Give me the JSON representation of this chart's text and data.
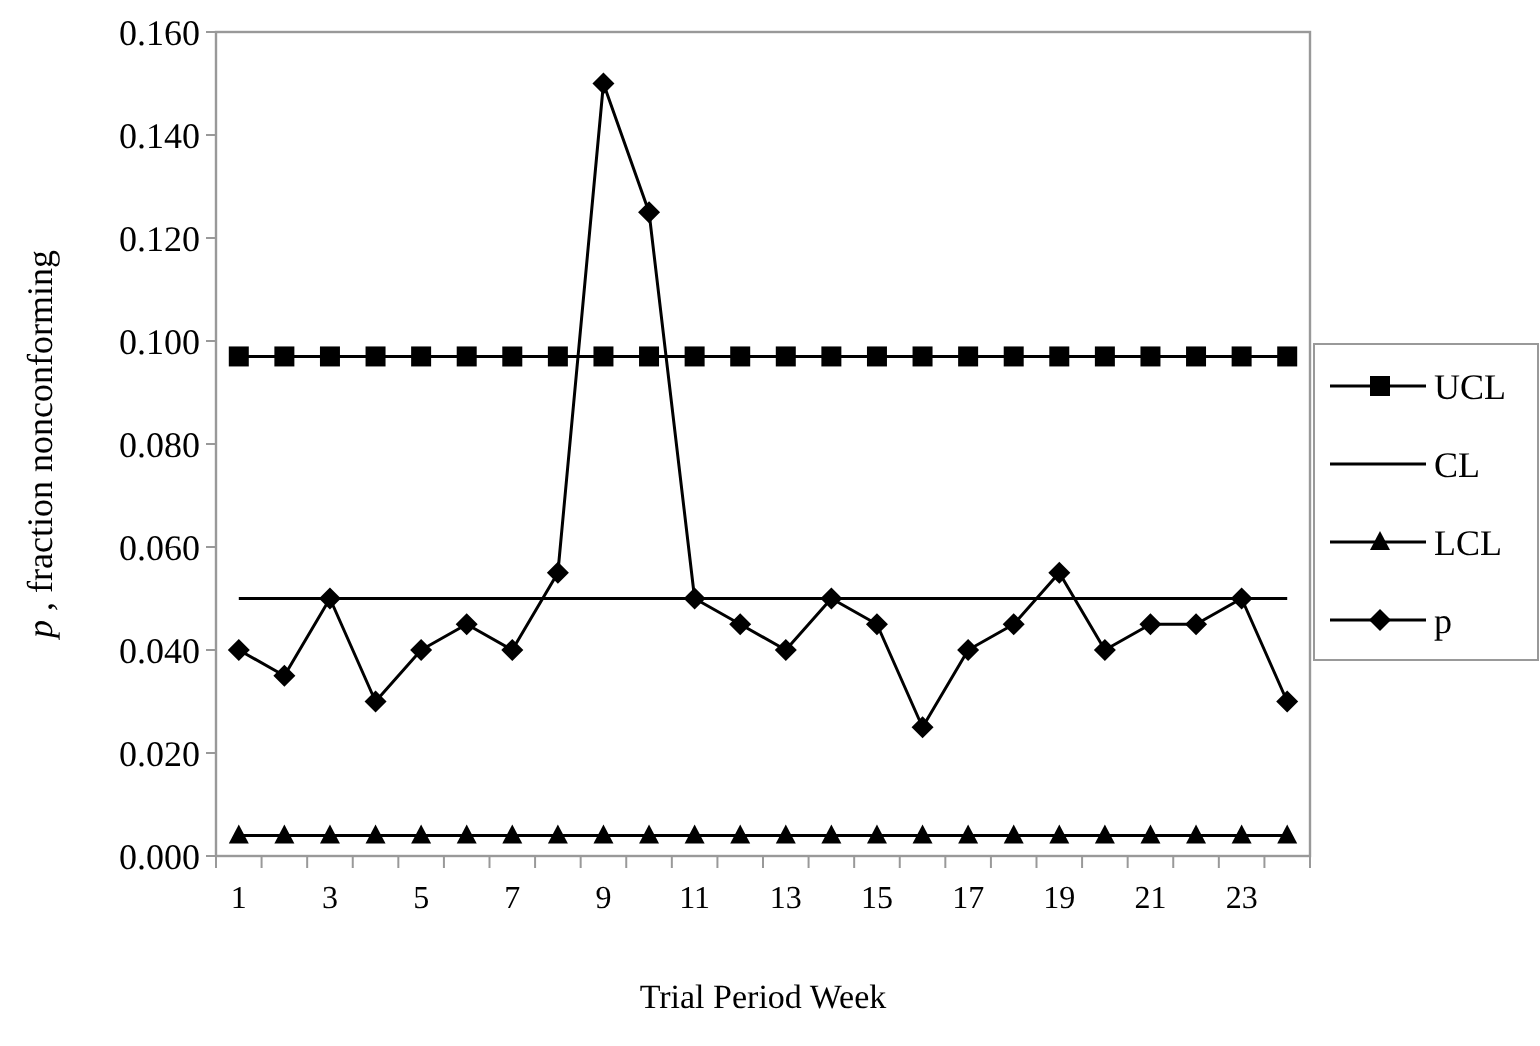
{
  "chart_data": {
    "type": "line",
    "xlabel": "Trial Period Week",
    "ylabel": "p , fraction nonconforming",
    "x": [
      1,
      2,
      3,
      4,
      5,
      6,
      7,
      8,
      9,
      10,
      11,
      12,
      13,
      14,
      15,
      16,
      17,
      18,
      19,
      20,
      21,
      22,
      23,
      24
    ],
    "xlim": [
      0.5,
      24.5
    ],
    "xticks": [
      1,
      3,
      5,
      7,
      9,
      11,
      13,
      15,
      17,
      19,
      21,
      23,
      {
        "value": 0.5,
        "label": null
      },
      {
        "value": 1.5,
        "label": null
      },
      {
        "value": 2.5,
        "label": null
      },
      {
        "value": 3.5,
        "label": null
      },
      {
        "value": 4.5,
        "label": null
      },
      {
        "value": 5.5,
        "label": null
      },
      {
        "value": 6.5,
        "label": null
      },
      {
        "value": 7.5,
        "label": null
      },
      {
        "value": 8.5,
        "label": null
      },
      {
        "value": 9.5,
        "label": null
      },
      {
        "value": 10.5,
        "label": null
      },
      {
        "value": 11.5,
        "label": null
      },
      {
        "value": 12.5,
        "label": null
      },
      {
        "value": 13.5,
        "label": null
      },
      {
        "value": 14.5,
        "label": null
      },
      {
        "value": 15.5,
        "label": null
      },
      {
        "value": 16.5,
        "label": null
      },
      {
        "value": 17.5,
        "label": null
      },
      {
        "value": 18.5,
        "label": null
      },
      {
        "value": 19.5,
        "label": null
      },
      {
        "value": 20.5,
        "label": null
      },
      {
        "value": 21.5,
        "label": null
      },
      {
        "value": 22.5,
        "label": null
      },
      {
        "value": 23.5,
        "label": null
      },
      {
        "value": 24.5,
        "label": null
      }
    ],
    "series": [
      {
        "name": "UCL",
        "color": "#000000",
        "marker": "square",
        "values": [
          0.097,
          0.097,
          0.097,
          0.097,
          0.097,
          0.097,
          0.097,
          0.097,
          0.097,
          0.097,
          0.097,
          0.097,
          0.097,
          0.097,
          0.097,
          0.097,
          0.097,
          0.097,
          0.097,
          0.097,
          0.097,
          0.097,
          0.097,
          0.097
        ]
      },
      {
        "name": "CL",
        "color": "#000000",
        "marker": "none",
        "values": [
          0.05,
          0.05,
          0.05,
          0.05,
          0.05,
          0.05,
          0.05,
          0.05,
          0.05,
          0.05,
          0.05,
          0.05,
          0.05,
          0.05,
          0.05,
          0.05,
          0.05,
          0.05,
          0.05,
          0.05,
          0.05,
          0.05,
          0.05,
          0.05
        ]
      },
      {
        "name": "LCL",
        "color": "#000000",
        "marker": "triangle",
        "values": [
          0.004,
          0.004,
          0.004,
          0.004,
          0.004,
          0.004,
          0.004,
          0.004,
          0.004,
          0.004,
          0.004,
          0.004,
          0.004,
          0.004,
          0.004,
          0.004,
          0.004,
          0.004,
          0.004,
          0.004,
          0.004,
          0.004,
          0.004,
          0.004
        ]
      },
      {
        "name": "p",
        "color": "#000000",
        "marker": "diamond",
        "values": [
          0.04,
          0.035,
          0.05,
          0.03,
          0.04,
          0.045,
          0.04,
          0.055,
          0.15,
          0.125,
          0.05,
          0.045,
          0.04,
          0.05,
          0.045,
          0.025,
          0.04,
          0.045,
          0.055,
          0.04,
          0.045,
          0.045,
          0.05,
          0.03
        ]
      }
    ],
    "ylim": [
      0,
      0.16
    ],
    "yticks": [
      {
        "value": 0,
        "label": "0.000"
      },
      {
        "value": 0.02,
        "label": "0.020"
      },
      {
        "value": 0.04,
        "label": "0.040"
      },
      {
        "value": 0.06,
        "label": "0.060"
      },
      {
        "value": 0.08,
        "label": "0.080"
      },
      {
        "value": 0.1,
        "label": "0.100"
      },
      {
        "value": 0.12,
        "label": "0.120"
      },
      {
        "value": 0.14,
        "label": "0.140"
      },
      {
        "value": 0.16,
        "label": "0.160"
      }
    ],
    "grid": false,
    "legend": "right",
    "line_style": "solid"
  }
}
